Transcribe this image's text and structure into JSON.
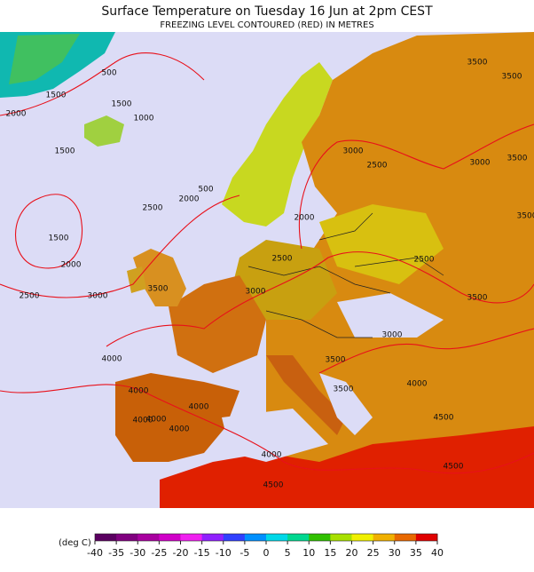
{
  "header": {
    "title": "Surface Temperature on Tuesday 16 Jun at 2pm CEST",
    "subtitle": "FREEZING LEVEL CONTOURED (RED) IN METRES"
  },
  "map": {
    "contour_labels": [
      "500",
      "1500",
      "1000",
      "2000",
      "1500",
      "1500",
      "1500",
      "2000",
      "2500",
      "3000",
      "2500",
      "2000",
      "500",
      "3500",
      "2000",
      "2500",
      "3000",
      "4000",
      "4000",
      "4000",
      "4000",
      "4000",
      "4000",
      "4000",
      "4500",
      "3500",
      "3500",
      "3000",
      "4000",
      "4500",
      "4500",
      "3500",
      "2500",
      "3000",
      "2500",
      "3000",
      "3500",
      "3500",
      "3500",
      "3500"
    ]
  },
  "legend": {
    "label": "(deg C)",
    "ticks": [
      -40,
      -35,
      -30,
      -25,
      -20,
      -15,
      -10,
      -5,
      0,
      5,
      10,
      15,
      20,
      25,
      30,
      35,
      40
    ],
    "colors": [
      "#5a0060",
      "#80007f",
      "#a8009f",
      "#d000c8",
      "#f020f0",
      "#9020ff",
      "#3040ff",
      "#0090ff",
      "#00d8e8",
      "#00d890",
      "#30c000",
      "#a8e000",
      "#f0f000",
      "#f0b000",
      "#e86800",
      "#e00000"
    ]
  }
}
